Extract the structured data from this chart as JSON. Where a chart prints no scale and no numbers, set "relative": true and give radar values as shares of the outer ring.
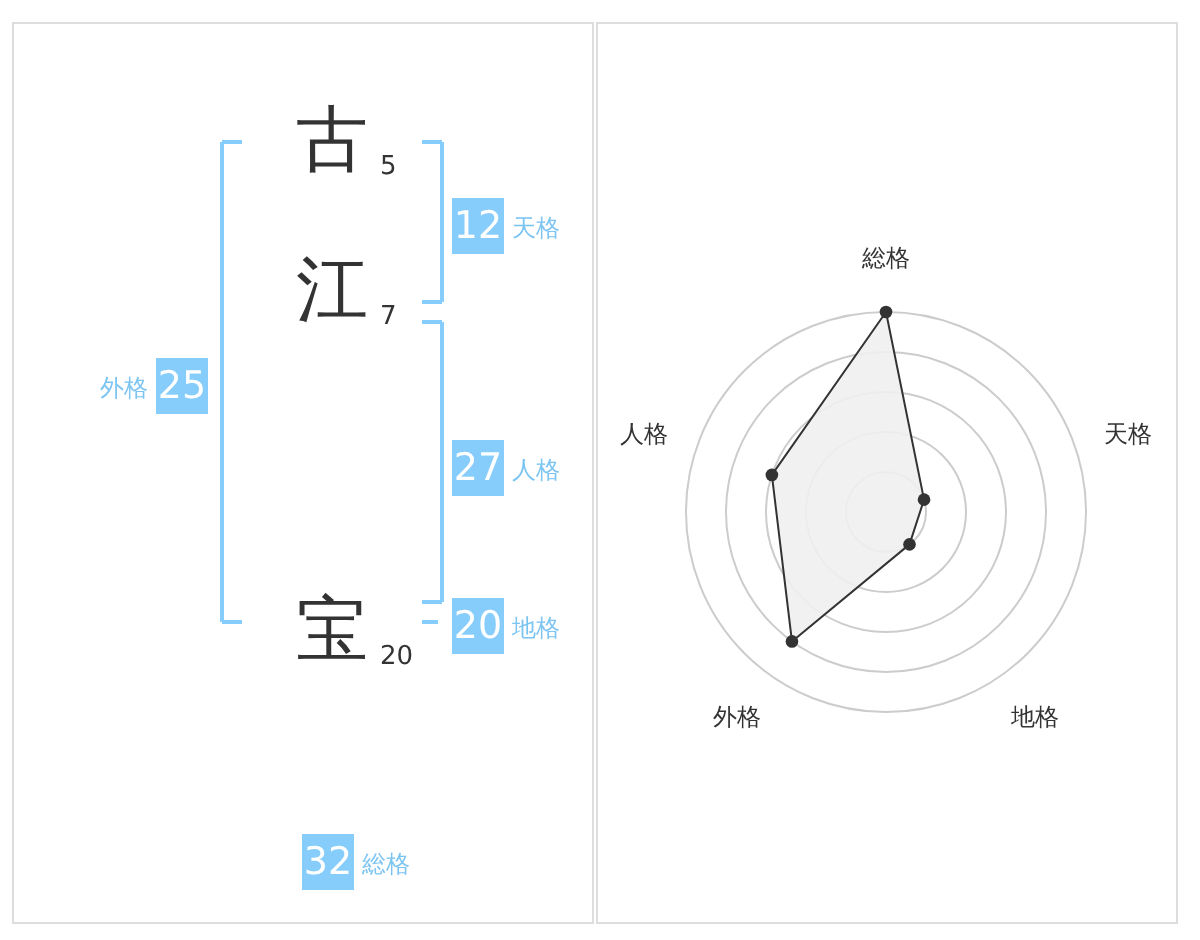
{
  "chart_data": [
    {
      "type": "other",
      "categories": [
        "古",
        "江",
        "宝"
      ],
      "values": [
        5,
        7,
        20
      ],
      "data_labels": true,
      "annotations": [
        "12",
        "天格",
        "27",
        "人格",
        "20",
        "地格",
        "25",
        "外格",
        "32",
        "総格"
      ]
    },
    {
      "type": "radar",
      "categories": [
        "総格",
        "天格",
        "地格",
        "外格",
        "人格"
      ],
      "relative": true,
      "grid": true,
      "marker": "circle",
      "series": [
        {
          "color": "#333333",
          "values": [
            1.0,
            0.2,
            0.2,
            0.8,
            0.6
          ]
        }
      ]
    }
  ]
}
